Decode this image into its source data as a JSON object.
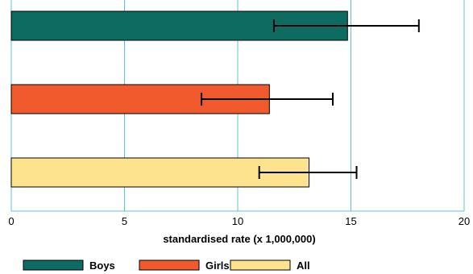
{
  "chart_data": {
    "type": "bar",
    "orientation": "horizontal",
    "title": "",
    "xlabel": "standardised rate (x 1,000,000)",
    "ylabel": "",
    "xlim": [
      0,
      20
    ],
    "xticks": [
      0,
      5,
      10,
      15,
      20
    ],
    "grid": "vertical",
    "legend_position": "bottom",
    "categories": [
      "Boys",
      "Girls",
      "All"
    ],
    "series": [
      {
        "name": "Boys",
        "value": 14.85,
        "error_low": 11.6,
        "error_high": 18.0,
        "color": "#0e6b62"
      },
      {
        "name": "Girls",
        "value": 11.4,
        "error_low": 8.4,
        "error_high": 14.2,
        "color": "#f05a2c"
      },
      {
        "name": "All",
        "value": 13.15,
        "error_low": 10.95,
        "error_high": 15.25,
        "color": "#fde38d"
      }
    ],
    "colors": {
      "gridline": "#5bc6cc",
      "bar_outline": "#000000",
      "error_bar": "#000000"
    }
  }
}
